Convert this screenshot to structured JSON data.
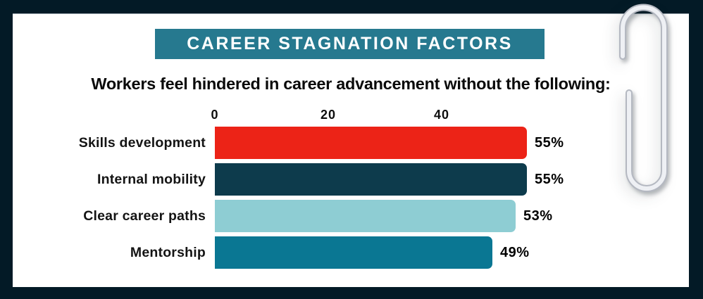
{
  "frame": {
    "background_color": "#031a26",
    "card_color": "#ffffff"
  },
  "banner": {
    "title": "CAREER STAGNATION FACTORS",
    "bg_color": "#26798f",
    "text_color": "#ffffff"
  },
  "subtitle": "Workers feel hindered in career advancement without the following:",
  "chart_data": {
    "type": "bar",
    "orientation": "horizontal",
    "title": "CAREER STAGNATION FACTORS",
    "subtitle": "Workers feel hindered in career advancement without the following:",
    "categories": [
      "Skills development",
      "Internal mobility",
      "Clear career paths",
      "Mentorship"
    ],
    "values": [
      55,
      55,
      53,
      49
    ],
    "value_labels": [
      "55%",
      "55%",
      "53%",
      "49%"
    ],
    "bar_colors": [
      "#ec2317",
      "#0d3b4c",
      "#8ecdd3",
      "#0a7793"
    ],
    "axis": {
      "position": "top",
      "ticks": [
        0,
        20,
        40
      ],
      "tick_labels": [
        "0",
        "20",
        "40"
      ],
      "max": 60
    },
    "grid": false,
    "legend": false,
    "xlabel": "",
    "ylabel": ""
  },
  "decor": {
    "paperclip": "paperclip-graphic",
    "paperclip_color": "#eef0f4"
  }
}
